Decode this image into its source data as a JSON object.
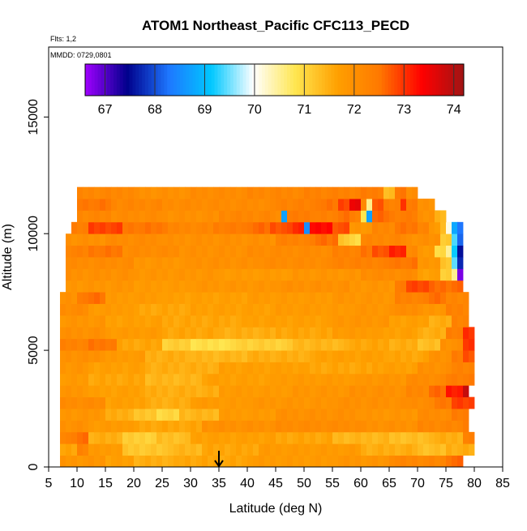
{
  "chart_data": {
    "type": "heatmap",
    "title": "ATOM1 Northeast_Pacific CFC113_PECD",
    "flights_label": "Flts: 1,2",
    "dates_label": "MMDD: 0729,0801",
    "xlabel": "Latitude (deg N)",
    "ylabel": "Altitude (m)",
    "xlim": [
      5,
      85
    ],
    "ylim": [
      0,
      18000
    ],
    "x_ticks": [
      5,
      10,
      15,
      20,
      25,
      30,
      35,
      40,
      45,
      50,
      55,
      60,
      65,
      70,
      75,
      80,
      85
    ],
    "y_ticks": [
      0,
      5000,
      10000,
      15000
    ],
    "colorbar": {
      "range": [
        66.6,
        74.2
      ],
      "ticks": [
        67,
        68,
        69,
        70,
        71,
        72,
        73,
        74
      ],
      "colors": [
        "#a000ff",
        "#00008c",
        "#1e78ff",
        "#00c8ff",
        "#ffffff",
        "#ffe650",
        "#ffa000",
        "#ff7800",
        "#ff0000",
        "#a01414"
      ]
    },
    "marker": {
      "latitude": 35,
      "label": "arrow"
    },
    "altitude_bin_m": 500,
    "latitude_bin_deg": 1,
    "rows": [
      {
        "alt": 0,
        "start": 7,
        "end": 78,
        "segments": [
          [
            7,
            71.9
          ],
          [
            15,
            71.7
          ],
          [
            20,
            71.5
          ],
          [
            28,
            71.6
          ],
          [
            40,
            71.8
          ],
          [
            55,
            71.9
          ],
          [
            65,
            72.2
          ],
          [
            75,
            72.6
          ]
        ]
      },
      {
        "alt": 500,
        "start": 7,
        "end": 80,
        "segments": [
          [
            7,
            71.6
          ],
          [
            10,
            72.3
          ],
          [
            12,
            71.8
          ],
          [
            18,
            71.2
          ],
          [
            26,
            71.4
          ],
          [
            32,
            71.6
          ],
          [
            42,
            71.8
          ],
          [
            60,
            71.5
          ],
          [
            70,
            71.3
          ],
          [
            75,
            71.5
          ]
        ]
      },
      {
        "alt": 1000,
        "start": 7,
        "end": 80,
        "segments": [
          [
            7,
            72.3
          ],
          [
            10,
            72.6
          ],
          [
            12,
            71.5
          ],
          [
            18,
            71.1
          ],
          [
            24,
            71.3
          ],
          [
            30,
            71.7
          ],
          [
            45,
            71.6
          ],
          [
            55,
            71.4
          ],
          [
            65,
            71.3
          ],
          [
            72,
            71.5
          ],
          [
            78,
            72.3
          ]
        ]
      },
      {
        "alt": 1500,
        "start": 7,
        "end": 79,
        "segments": [
          [
            7,
            72.0
          ],
          [
            12,
            71.8
          ],
          [
            20,
            71.6
          ],
          [
            32,
            72.0
          ],
          [
            45,
            72.1
          ],
          [
            60,
            72.0
          ],
          [
            70,
            72.2
          ],
          [
            78,
            72.5
          ]
        ]
      },
      {
        "alt": 2000,
        "start": 7,
        "end": 79,
        "segments": [
          [
            7,
            71.9
          ],
          [
            15,
            71.5
          ],
          [
            20,
            71.2
          ],
          [
            24,
            71.0
          ],
          [
            28,
            71.4
          ],
          [
            35,
            71.8
          ],
          [
            45,
            72.0
          ],
          [
            60,
            71.9
          ],
          [
            70,
            72.1
          ],
          [
            76,
            72.4
          ]
        ]
      },
      {
        "alt": 2500,
        "start": 7,
        "end": 80,
        "segments": [
          [
            7,
            72.1
          ],
          [
            15,
            71.7
          ],
          [
            22,
            71.5
          ],
          [
            30,
            71.8
          ],
          [
            40,
            71.9
          ],
          [
            55,
            72.0
          ],
          [
            68,
            72.1
          ],
          [
            73,
            72.5
          ],
          [
            76,
            72.9
          ]
        ]
      },
      {
        "alt": 3000,
        "start": 7,
        "end": 79,
        "segments": [
          [
            7,
            71.9
          ],
          [
            12,
            71.7
          ],
          [
            22,
            71.5
          ],
          [
            35,
            71.8
          ],
          [
            48,
            71.9
          ],
          [
            58,
            72.0
          ],
          [
            68,
            72.2
          ],
          [
            72,
            72.6
          ],
          [
            75,
            73.2
          ],
          [
            78,
            73.8
          ]
        ]
      },
      {
        "alt": 3500,
        "start": 7,
        "end": 80,
        "segments": [
          [
            7,
            71.8
          ],
          [
            12,
            71.6
          ],
          [
            22,
            71.4
          ],
          [
            32,
            71.7
          ],
          [
            45,
            71.8
          ],
          [
            60,
            71.9
          ],
          [
            68,
            72.1
          ],
          [
            75,
            72.4
          ]
        ]
      },
      {
        "alt": 4000,
        "start": 7,
        "end": 80,
        "segments": [
          [
            7,
            71.9
          ],
          [
            12,
            71.7
          ],
          [
            22,
            71.5
          ],
          [
            35,
            71.7
          ],
          [
            50,
            71.6
          ],
          [
            62,
            71.7
          ],
          [
            70,
            72.0
          ],
          [
            76,
            72.3
          ]
        ]
      },
      {
        "alt": 4500,
        "start": 7,
        "end": 80,
        "segments": [
          [
            7,
            72.0
          ],
          [
            15,
            71.8
          ],
          [
            22,
            71.5
          ],
          [
            30,
            71.4
          ],
          [
            40,
            71.5
          ],
          [
            52,
            71.7
          ],
          [
            65,
            71.6
          ],
          [
            72,
            72.0
          ],
          [
            76,
            72.4
          ],
          [
            78,
            72.8
          ]
        ]
      },
      {
        "alt": 5000,
        "start": 7,
        "end": 80,
        "segments": [
          [
            7,
            72.3
          ],
          [
            12,
            72.5
          ],
          [
            17,
            71.6
          ],
          [
            25,
            71.1
          ],
          [
            30,
            70.9
          ],
          [
            38,
            71.1
          ],
          [
            48,
            71.4
          ],
          [
            58,
            71.6
          ],
          [
            65,
            71.5
          ],
          [
            70,
            71.3
          ],
          [
            74,
            72.0
          ],
          [
            78,
            73.0
          ]
        ]
      },
      {
        "alt": 5500,
        "start": 7,
        "end": 80,
        "segments": [
          [
            7,
            72.0
          ],
          [
            15,
            71.8
          ],
          [
            25,
            71.6
          ],
          [
            35,
            71.5
          ],
          [
            45,
            71.6
          ],
          [
            55,
            71.8
          ],
          [
            63,
            71.7
          ],
          [
            70,
            71.5
          ],
          [
            75,
            72.4
          ],
          [
            78,
            73.0
          ]
        ]
      },
      {
        "alt": 6000,
        "start": 7,
        "end": 79,
        "segments": [
          [
            7,
            71.9
          ],
          [
            15,
            71.7
          ],
          [
            25,
            71.6
          ],
          [
            40,
            71.7
          ],
          [
            55,
            71.9
          ],
          [
            65,
            71.7
          ],
          [
            72,
            71.5
          ],
          [
            76,
            72.3
          ]
        ]
      },
      {
        "alt": 6500,
        "start": 7,
        "end": 79,
        "segments": [
          [
            7,
            72.1
          ],
          [
            12,
            71.8
          ],
          [
            20,
            71.6
          ],
          [
            30,
            71.7
          ],
          [
            45,
            71.8
          ],
          [
            58,
            71.9
          ],
          [
            66,
            72.1
          ],
          [
            70,
            71.9
          ],
          [
            75,
            72.3
          ]
        ]
      },
      {
        "alt": 7000,
        "start": 7,
        "end": 79,
        "segments": [
          [
            7,
            72.0
          ],
          [
            10,
            72.4
          ],
          [
            12,
            72.6
          ],
          [
            15,
            71.8
          ],
          [
            25,
            71.7
          ],
          [
            40,
            71.8
          ],
          [
            55,
            71.9
          ],
          [
            66,
            72.3
          ],
          [
            72,
            72.6
          ],
          [
            75,
            72.2
          ]
        ]
      },
      {
        "alt": 7500,
        "start": 8,
        "end": 78,
        "segments": [
          [
            8,
            71.9
          ],
          [
            20,
            71.8
          ],
          [
            30,
            71.9
          ],
          [
            45,
            72.0
          ],
          [
            58,
            71.9
          ],
          [
            66,
            72.4
          ],
          [
            68,
            72.9
          ],
          [
            72,
            72.6
          ]
        ]
      },
      {
        "alt": 8000,
        "start": 8,
        "end": 78,
        "segments": [
          [
            8,
            72.0
          ],
          [
            20,
            71.9
          ],
          [
            35,
            71.8
          ],
          [
            48,
            71.9
          ],
          [
            60,
            72.1
          ],
          [
            70,
            71.7
          ],
          [
            74,
            71.1
          ],
          [
            76,
            70.6
          ],
          [
            77,
            66.8
          ]
        ]
      },
      {
        "alt": 8500,
        "start": 8,
        "end": 78,
        "segments": [
          [
            8,
            72.1
          ],
          [
            20,
            71.9
          ],
          [
            30,
            72.0
          ],
          [
            42,
            72.1
          ],
          [
            55,
            72.3
          ],
          [
            65,
            72.5
          ],
          [
            70,
            71.9
          ],
          [
            74,
            71.2
          ],
          [
            76,
            69.4
          ],
          [
            77,
            67.8
          ]
        ]
      },
      {
        "alt": 9000,
        "start": 8,
        "end": 78,
        "segments": [
          [
            8,
            72.3
          ],
          [
            12,
            72.5
          ],
          [
            18,
            72.1
          ],
          [
            28,
            72.0
          ],
          [
            40,
            72.1
          ],
          [
            55,
            72.3
          ],
          [
            60,
            72.5
          ],
          [
            62,
            72.8
          ],
          [
            65,
            73.1
          ],
          [
            68,
            72.2
          ],
          [
            70,
            71.8
          ],
          [
            73,
            71.0
          ],
          [
            75,
            70.4
          ],
          [
            76,
            69.2
          ],
          [
            77,
            67.5
          ]
        ]
      },
      {
        "alt": 9500,
        "start": 8,
        "end": 78,
        "segments": [
          [
            8,
            72.0
          ],
          [
            15,
            72.1
          ],
          [
            25,
            72.0
          ],
          [
            35,
            72.0
          ],
          [
            45,
            72.3
          ],
          [
            52,
            72.6
          ],
          [
            56,
            71.2
          ],
          [
            58,
            71.0
          ],
          [
            60,
            72.2
          ],
          [
            68,
            72.0
          ],
          [
            74,
            71.2
          ],
          [
            76,
            69.3
          ],
          [
            77,
            68.2
          ]
        ]
      },
      {
        "alt": 10000,
        "start": 9,
        "end": 78,
        "segments": [
          [
            9,
            72.4
          ],
          [
            12,
            72.9
          ],
          [
            18,
            72.5
          ],
          [
            26,
            72.2
          ],
          [
            34,
            72.4
          ],
          [
            40,
            72.6
          ],
          [
            44,
            72.8
          ],
          [
            48,
            73.1
          ],
          [
            50,
            68.6
          ],
          [
            51,
            73.3
          ],
          [
            55,
            72.8
          ],
          [
            58,
            71.9
          ],
          [
            62,
            72.2
          ],
          [
            66,
            72.5
          ],
          [
            70,
            72.3
          ],
          [
            72,
            71.8
          ],
          [
            74,
            71.3
          ],
          [
            75,
            70.2
          ],
          [
            76,
            68.8
          ],
          [
            77,
            68.2
          ]
        ]
      },
      {
        "alt": 10500,
        "start": 10,
        "end": 75,
        "segments": [
          [
            10,
            72.2
          ],
          [
            16,
            72.1
          ],
          [
            25,
            72.0
          ],
          [
            35,
            72.2
          ],
          [
            45,
            72.0
          ],
          [
            46,
            68.8
          ],
          [
            47,
            72.4
          ],
          [
            52,
            72.3
          ],
          [
            56,
            72.6
          ],
          [
            58,
            72.3
          ],
          [
            60,
            70.8
          ],
          [
            61,
            68.8
          ],
          [
            62,
            72.6
          ],
          [
            65,
            72.4
          ],
          [
            70,
            72.0
          ],
          [
            73,
            71.4
          ]
        ]
      },
      {
        "alt": 11000,
        "start": 10,
        "end": 73,
        "segments": [
          [
            10,
            72.5
          ],
          [
            16,
            72.2
          ],
          [
            25,
            72.1
          ],
          [
            35,
            72.1
          ],
          [
            45,
            72.3
          ],
          [
            52,
            72.5
          ],
          [
            56,
            72.9
          ],
          [
            58,
            73.5
          ],
          [
            60,
            72.2
          ],
          [
            61,
            70.5
          ],
          [
            62,
            72.8
          ],
          [
            64,
            72.3
          ],
          [
            67,
            73.1
          ],
          [
            68,
            72.4
          ],
          [
            70,
            72.0
          ]
        ]
      },
      {
        "alt": 11500,
        "start": 10,
        "end": 70,
        "segments": [
          [
            10,
            72.2
          ],
          [
            20,
            72.0
          ],
          [
            30,
            72.1
          ],
          [
            40,
            72.2
          ],
          [
            50,
            72.3
          ],
          [
            60,
            72.4
          ],
          [
            64,
            71.3
          ],
          [
            66,
            72.5
          ],
          [
            68,
            72.1
          ]
        ]
      }
    ]
  }
}
